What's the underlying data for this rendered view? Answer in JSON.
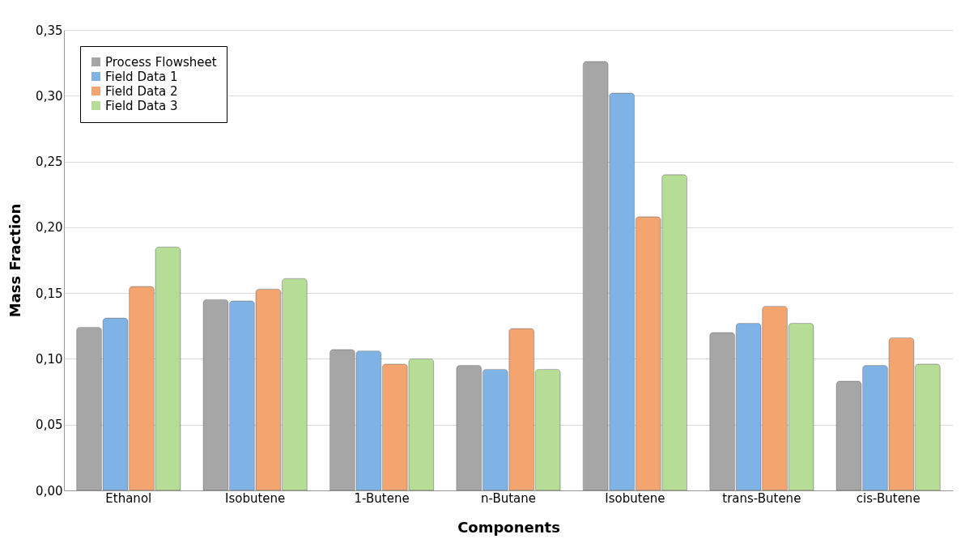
{
  "chart_data": {
    "type": "bar",
    "xlabel": "Components",
    "ylabel": "Mass Fraction",
    "categories": [
      "Ethanol",
      "Isobutene",
      "1-Butene",
      "n-Butane",
      "Isobutene",
      "trans-Butene",
      "cis-Butene"
    ],
    "series": [
      {
        "name": "Process Flowsheet",
        "color": "#a6a6a6",
        "values": [
          0.124,
          0.145,
          0.107,
          0.095,
          0.326,
          0.12,
          0.083
        ]
      },
      {
        "name": "Field Data 1",
        "color": "#7fb2e5",
        "values": [
          0.131,
          0.144,
          0.106,
          0.092,
          0.302,
          0.127,
          0.095
        ]
      },
      {
        "name": "Field Data 2",
        "color": "#f4a56f",
        "values": [
          0.155,
          0.153,
          0.096,
          0.123,
          0.208,
          0.14,
          0.116
        ]
      },
      {
        "name": "Field Data 3",
        "color": "#b5dd95",
        "values": [
          0.185,
          0.161,
          0.1,
          0.092,
          0.24,
          0.127,
          0.096
        ]
      }
    ],
    "ylim": [
      0,
      0.35
    ],
    "yticks": [
      {
        "value": 0,
        "label": "0,00"
      },
      {
        "value": 0.05,
        "label": "0,05"
      },
      {
        "value": 0.1,
        "label": "0,10"
      },
      {
        "value": 0.15,
        "label": "0,15"
      },
      {
        "value": 0.2,
        "label": "0,20"
      },
      {
        "value": 0.25,
        "label": "0,25"
      },
      {
        "value": 0.3,
        "label": "0,30"
      },
      {
        "value": 0.35,
        "label": "0,35"
      }
    ],
    "grid": "y",
    "legend": "top left"
  }
}
